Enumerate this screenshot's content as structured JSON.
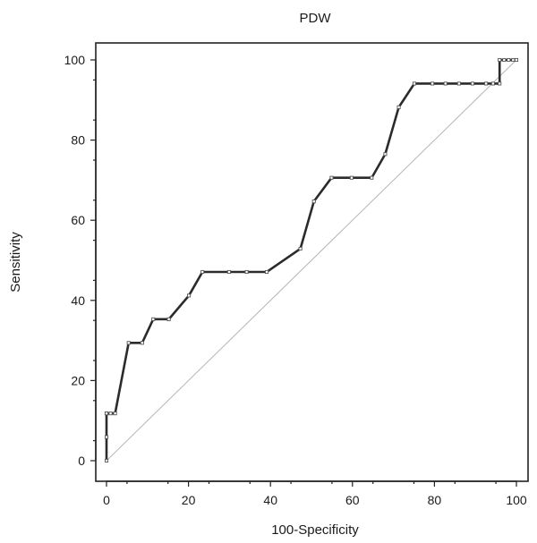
{
  "chart_data": {
    "type": "line",
    "title": "PDW",
    "xlabel": "100-Specificity",
    "ylabel": "Sensitivity",
    "xlim": [
      0,
      100
    ],
    "ylim": [
      0,
      100
    ],
    "xticks": [
      0,
      20,
      40,
      60,
      80,
      100
    ],
    "yticks": [
      0,
      20,
      40,
      60,
      80,
      100
    ],
    "xtick_labels": [
      "0",
      "20",
      "40",
      "60",
      "80",
      "100"
    ],
    "ytick_labels": [
      "0",
      "20",
      "40",
      "60",
      "80",
      "100"
    ],
    "grid": false,
    "reference_line": {
      "x": [
        0,
        100
      ],
      "y": [
        0,
        100
      ]
    },
    "series": [
      {
        "x": [
          0,
          0,
          0,
          0,
          1.0,
          2.1,
          5.4,
          8.7,
          11.4,
          15.2,
          20.1,
          23.4,
          29.9,
          34.2,
          39.1,
          47.3,
          50.6,
          54.9,
          59.8,
          64.7,
          68.0,
          71.3,
          75.1,
          79.5,
          82.7,
          86.0,
          89.3,
          92.6,
          94.3,
          95.9,
          95.9,
          97.0,
          98.1,
          99.2,
          100
        ],
        "y": [
          0,
          5.9,
          11.8,
          11.8,
          11.8,
          11.8,
          29.4,
          29.4,
          35.3,
          35.3,
          41.2,
          47.1,
          47.1,
          47.1,
          47.1,
          52.9,
          64.7,
          70.6,
          70.6,
          70.6,
          76.5,
          88.2,
          94.1,
          94.1,
          94.1,
          94.1,
          94.1,
          94.1,
          94.1,
          94.1,
          100,
          100,
          100,
          100,
          100
        ]
      }
    ]
  }
}
